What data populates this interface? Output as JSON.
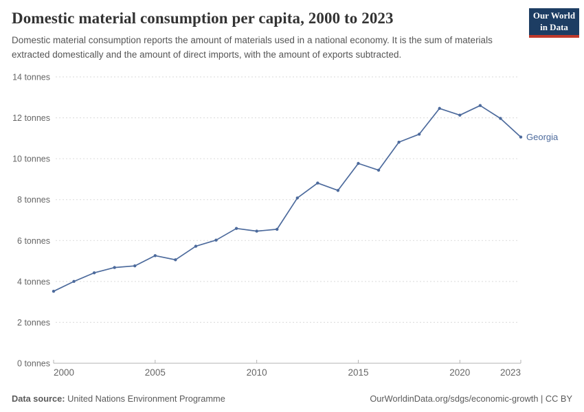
{
  "header": {
    "title": "Domestic material consumption per capita, 2000 to 2023",
    "subtitle": "Domestic material consumption reports the amount of materials used in a national economy. It is the sum of materials extracted domestically and the amount of direct imports, with the amount of exports subtracted.",
    "logo_line1": "Our World",
    "logo_line2": "in Data",
    "logo_bg_color": "#1d3d63",
    "logo_accent_color": "#c0392b"
  },
  "chart_data": {
    "type": "line",
    "title": "Domestic material consumption per capita, 2000 to 2023",
    "xlabel": "",
    "ylabel": "tonnes",
    "xlim": [
      2000,
      2023
    ],
    "ylim": [
      0,
      14
    ],
    "grid": "horizontal-dashed",
    "legend_position": "end-of-line-label",
    "xticks": [
      2000,
      2005,
      2010,
      2015,
      2020,
      2023
    ],
    "yticks": [
      0,
      2,
      4,
      6,
      8,
      10,
      12,
      14
    ],
    "ytick_suffix": " tonnes",
    "x": [
      2000,
      2001,
      2002,
      2003,
      2004,
      2005,
      2006,
      2007,
      2008,
      2009,
      2010,
      2011,
      2012,
      2013,
      2014,
      2015,
      2016,
      2017,
      2018,
      2019,
      2020,
      2021,
      2022,
      2023
    ],
    "series": [
      {
        "name": "Georgia",
        "color": "#4c6a9c",
        "values": [
          3.52,
          4.0,
          4.42,
          4.68,
          4.76,
          5.26,
          5.06,
          5.72,
          6.02,
          6.59,
          6.46,
          6.55,
          8.08,
          8.81,
          8.45,
          9.77,
          9.44,
          10.81,
          11.2,
          12.46,
          12.13,
          12.6,
          11.97,
          11.06
        ]
      }
    ],
    "colors": {
      "gridline": "#dadada",
      "axis": "#b3b3b3",
      "tick_label": "#666666"
    }
  },
  "footer": {
    "source_label": "Data source:",
    "source_value": "United Nations Environment Programme",
    "credit": "OurWorldinData.org/sdgs/economic-growth | CC BY"
  }
}
